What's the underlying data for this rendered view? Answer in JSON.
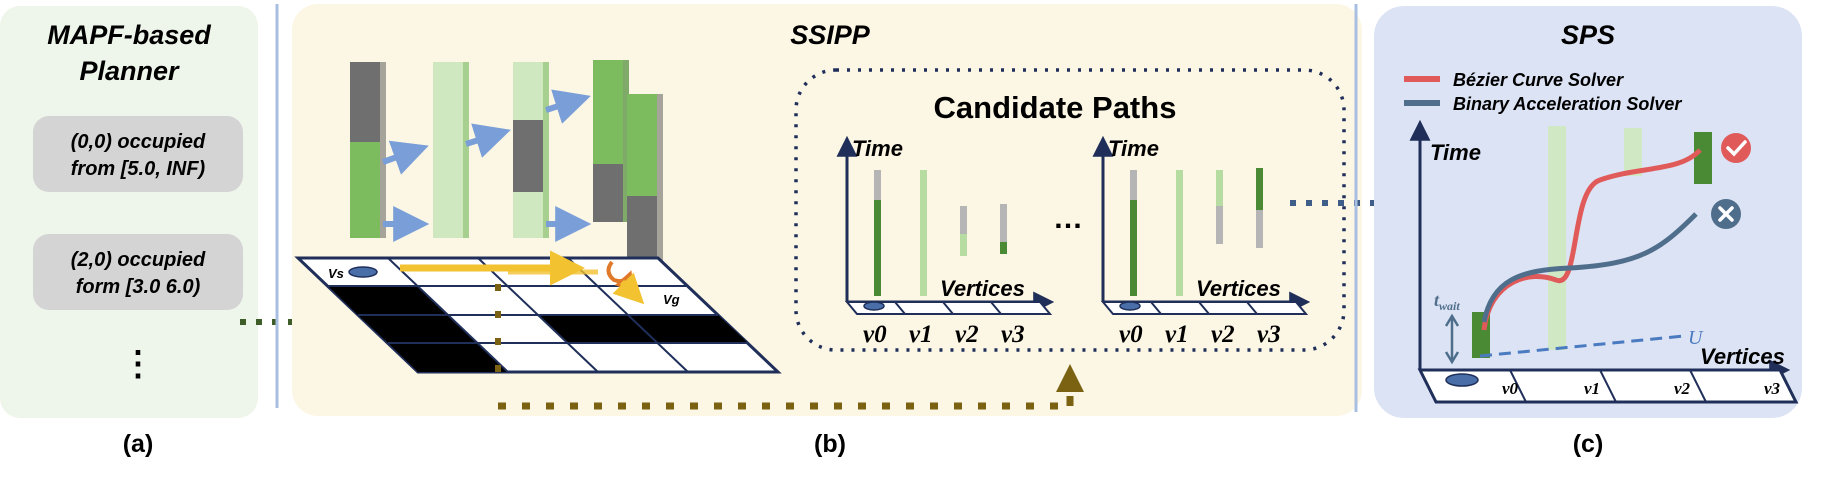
{
  "panel_a": {
    "title_line1": "MAPF-based",
    "title_line2": "Planner",
    "box1_line1": "(0,0) occupied",
    "box1_line2": "from [5.0, INF)",
    "box2_line1": "(2,0) occupied",
    "box2_line2": "form [3.0 6.0)",
    "ellipsis": "⋮",
    "caption": "(a)"
  },
  "panel_b": {
    "title": "SSIPP",
    "grid_start_label": "Vs",
    "grid_goal_label": "Vg",
    "candidate_title": "Candidate Paths",
    "plot_ylabel": "Time",
    "plot_xlabel": "Vertices",
    "vertex_labels": [
      "v0",
      "v1",
      "v2",
      "v3"
    ],
    "dots": "…",
    "caption": "(b)"
  },
  "panel_c": {
    "title": "SPS",
    "legend_red": "Bézier Curve Solver",
    "legend_blue": "Binary Acceleration Solver",
    "ylabel": "Time",
    "xlabel": "Vertices",
    "t_wait_label": "t",
    "t_wait_sub": "wait",
    "u_label": "U",
    "vertex_labels": [
      "v0",
      "v1",
      "v2",
      "v3"
    ],
    "caption": "(c)"
  },
  "colors": {
    "panel_a_bg": "#eef5ea",
    "panel_b_bg": "#fcf6e4",
    "panel_c_bg": "#dce3f4",
    "green": "#7dbb5f",
    "dark_green": "#4a8a34",
    "light_green": "#cfe8c0",
    "gray": "#6f6f6f",
    "red_curve": "#e05a5a",
    "blue_curve": "#4f6e8c",
    "olive": "#7a6212",
    "divider": "#a9bfe2"
  }
}
